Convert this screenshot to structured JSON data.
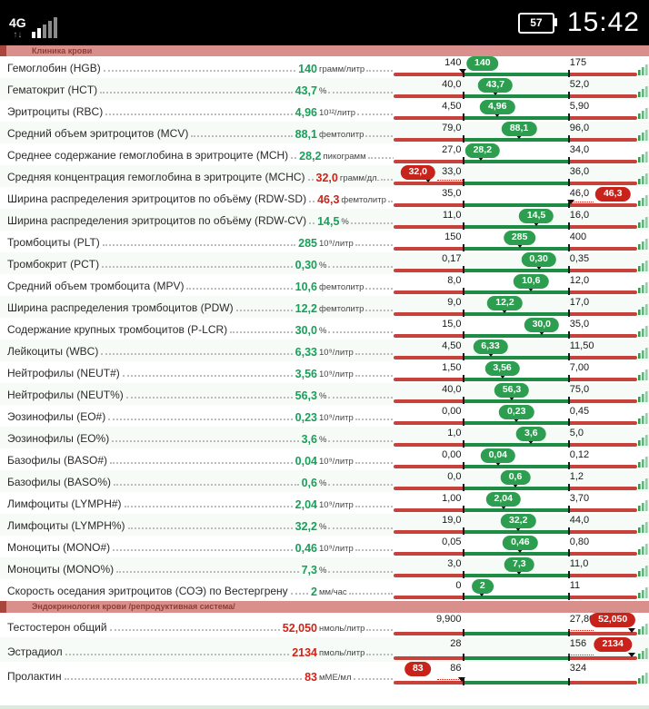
{
  "status_bar": {
    "network": "4G",
    "battery": "57",
    "time": "15:42"
  },
  "colors": {
    "bar_red": "#c8423c",
    "bar_green": "#1f8c45",
    "badge_green": "#2d9e50",
    "badge_red": "#c8231b",
    "value_green": "#18a05a",
    "value_red": "#cc2418",
    "band_bg": "#d9908d",
    "band_text": "#8e3c35",
    "band_accent": "#a8453d"
  },
  "icons": {
    "trend": "mini-bar-chart-icon",
    "signal": "signal-strength-icon",
    "battery": "battery-icon"
  },
  "sections": [
    {
      "title": "Клиника крови",
      "rows": [
        {
          "name": "Гемоглобин (HGB)",
          "value": "140",
          "unit": "грамм/литр",
          "ref_min": "140",
          "ref_max": "175"
        },
        {
          "name": "Гематокрит (HCT)",
          "value": "43,7",
          "unit": "%",
          "ref_min": "40,0",
          "ref_max": "52,0"
        },
        {
          "name": "Эритроциты (RBC)",
          "value": "4,96",
          "unit": "10¹²/литр",
          "ref_min": "4,50",
          "ref_max": "5,90"
        },
        {
          "name": "Средний объем эритроцитов (MCV)",
          "value": "88,1",
          "unit": "фемтолитр",
          "ref_min": "79,0",
          "ref_max": "96,0"
        },
        {
          "name": "Среднее содержание гемоглобина в эритроците (MCH)",
          "value": "28,2",
          "unit": "пикограмм",
          "ref_min": "27,0",
          "ref_max": "34,0"
        },
        {
          "name": "Средняя концентрация гемоглобина в эритроците (MCHC)",
          "value": "32,0",
          "unit": "грамм/дл.",
          "ref_min": "33,0",
          "ref_max": "36,0"
        },
        {
          "name": "Ширина распределения эритроцитов по объёму (RDW-SD)",
          "value": "46,3",
          "unit": "фемтолитр",
          "ref_min": "35,0",
          "ref_max": "46,0"
        },
        {
          "name": "Ширина распределения эритроцитов по объёму (RDW-CV)",
          "value": "14,5",
          "unit": "%",
          "ref_min": "11,0",
          "ref_max": "16,0"
        },
        {
          "name": "Тромбоциты (PLT)",
          "value": "285",
          "unit": "10⁹/литр",
          "ref_min": "150",
          "ref_max": "400"
        },
        {
          "name": "Тромбокрит (PCT)",
          "value": "0,30",
          "unit": "%",
          "ref_min": "0,17",
          "ref_max": "0,35"
        },
        {
          "name": "Средний объем тромбоцита (MPV)",
          "value": "10,6",
          "unit": "фемтолитр",
          "ref_min": "8,0",
          "ref_max": "12,0"
        },
        {
          "name": "Ширина распределения тромбоцитов (PDW)",
          "value": "12,2",
          "unit": "фемтолитр",
          "ref_min": "9,0",
          "ref_max": "17,0"
        },
        {
          "name": "Содержание крупных тромбоцитов (P-LCR)",
          "value": "30,0",
          "unit": "%",
          "ref_min": "15,0",
          "ref_max": "35,0"
        },
        {
          "name": "Лейкоциты (WBC)",
          "value": "6,33",
          "unit": "10⁹/литр",
          "ref_min": "4,50",
          "ref_max": "11,50"
        },
        {
          "name": "Нейтрофилы (NEUT#)",
          "value": "3,56",
          "unit": "10⁹/литр",
          "ref_min": "1,50",
          "ref_max": "7,00"
        },
        {
          "name": "Нейтрофилы (NEUT%)",
          "value": "56,3",
          "unit": "%",
          "ref_min": "40,0",
          "ref_max": "75,0"
        },
        {
          "name": "Эозинофилы (EO#)",
          "value": "0,23",
          "unit": "10⁹/литр",
          "ref_min": "0,00",
          "ref_max": "0,45"
        },
        {
          "name": "Эозинофилы (EO%)",
          "value": "3,6",
          "unit": "%",
          "ref_min": "1,0",
          "ref_max": "5,0"
        },
        {
          "name": "Базофилы (BASO#)",
          "value": "0,04",
          "unit": "10⁹/литр",
          "ref_min": "0,00",
          "ref_max": "0,12"
        },
        {
          "name": "Базофилы (BASO%)",
          "value": "0,6",
          "unit": "%",
          "ref_min": "0,0",
          "ref_max": "1,2"
        },
        {
          "name": "Лимфоциты (LYMPH#)",
          "value": "2,04",
          "unit": "10⁹/литр",
          "ref_min": "1,00",
          "ref_max": "3,70"
        },
        {
          "name": "Лимфоциты (LYMPH%)",
          "value": "32,2",
          "unit": "%",
          "ref_min": "19,0",
          "ref_max": "44,0"
        },
        {
          "name": "Моноциты (MONO#)",
          "value": "0,46",
          "unit": "10⁹/литр",
          "ref_min": "0,05",
          "ref_max": "0,80"
        },
        {
          "name": "Моноциты (MONO%)",
          "value": "7,3",
          "unit": "%",
          "ref_min": "3,0",
          "ref_max": "11,0"
        },
        {
          "name": "Скорость оседания эритроцитов (СОЭ) по Вестергрену",
          "value": "2",
          "unit": "мм/час",
          "ref_min": "0",
          "ref_max": "11"
        }
      ]
    },
    {
      "title": "Эндокринология крови /репродуктивная система/",
      "rows": [
        {
          "name": "Тестостерон общий",
          "value": "52,050",
          "unit": "нмоль/литр",
          "ref_min": "9,900",
          "ref_max": "27,800"
        },
        {
          "name": "Эстрадиол",
          "value": "2134",
          "unit": "пмоль/литр",
          "ref_min": "28",
          "ref_max": "156"
        },
        {
          "name": "Пролактин",
          "value": "83",
          "unit": "мМЕ/мл",
          "ref_min": "86",
          "ref_max": "324"
        }
      ]
    }
  ]
}
